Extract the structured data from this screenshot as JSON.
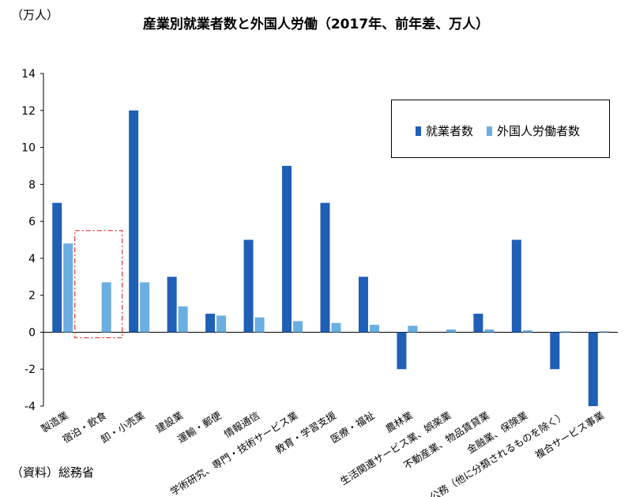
{
  "header": {
    "unit": "（万人）",
    "title": "産業別就業者数と外国人労働（2017年、前年差、万人）"
  },
  "footer": {
    "source": "（資料）総務省"
  },
  "colors": {
    "employed": "#1f5fb6",
    "foreign": "#6aaee2",
    "highlight": "#e03030"
  },
  "chart_data": {
    "type": "bar",
    "categories": [
      "製造業",
      "宿泊・飲食",
      "卸・小売業",
      "建設業",
      "運輸・郵便",
      "情報通信",
      "学術研究、専門・技術サービス業",
      "教育・学習支援",
      "医療・福祉",
      "農林業",
      "生活関連サービス業、娯楽業",
      "不動産業、物品賃貸業",
      "金融業、保険業",
      "公務（他に分類されるものを除く）",
      "複合サービス事業"
    ],
    "series": [
      {
        "name": "就業者数",
        "values": [
          7,
          0,
          12,
          3,
          1,
          5,
          9,
          7,
          3,
          -2,
          0,
          1,
          5,
          -2,
          -4
        ]
      },
      {
        "name": "外国人労働者数",
        "values": [
          4.8,
          2.7,
          2.7,
          1.4,
          0.9,
          0.8,
          0.6,
          0.5,
          0.4,
          0.35,
          0.15,
          0.15,
          0.1,
          0.05,
          0.05
        ]
      }
    ],
    "ylim": [
      -4,
      14
    ],
    "yticks": [
      -4,
      -2,
      0,
      2,
      4,
      6,
      8,
      10,
      12,
      14
    ],
    "legend_position": "top-right",
    "highlight_category": "宿泊・飲食",
    "grid": false
  }
}
